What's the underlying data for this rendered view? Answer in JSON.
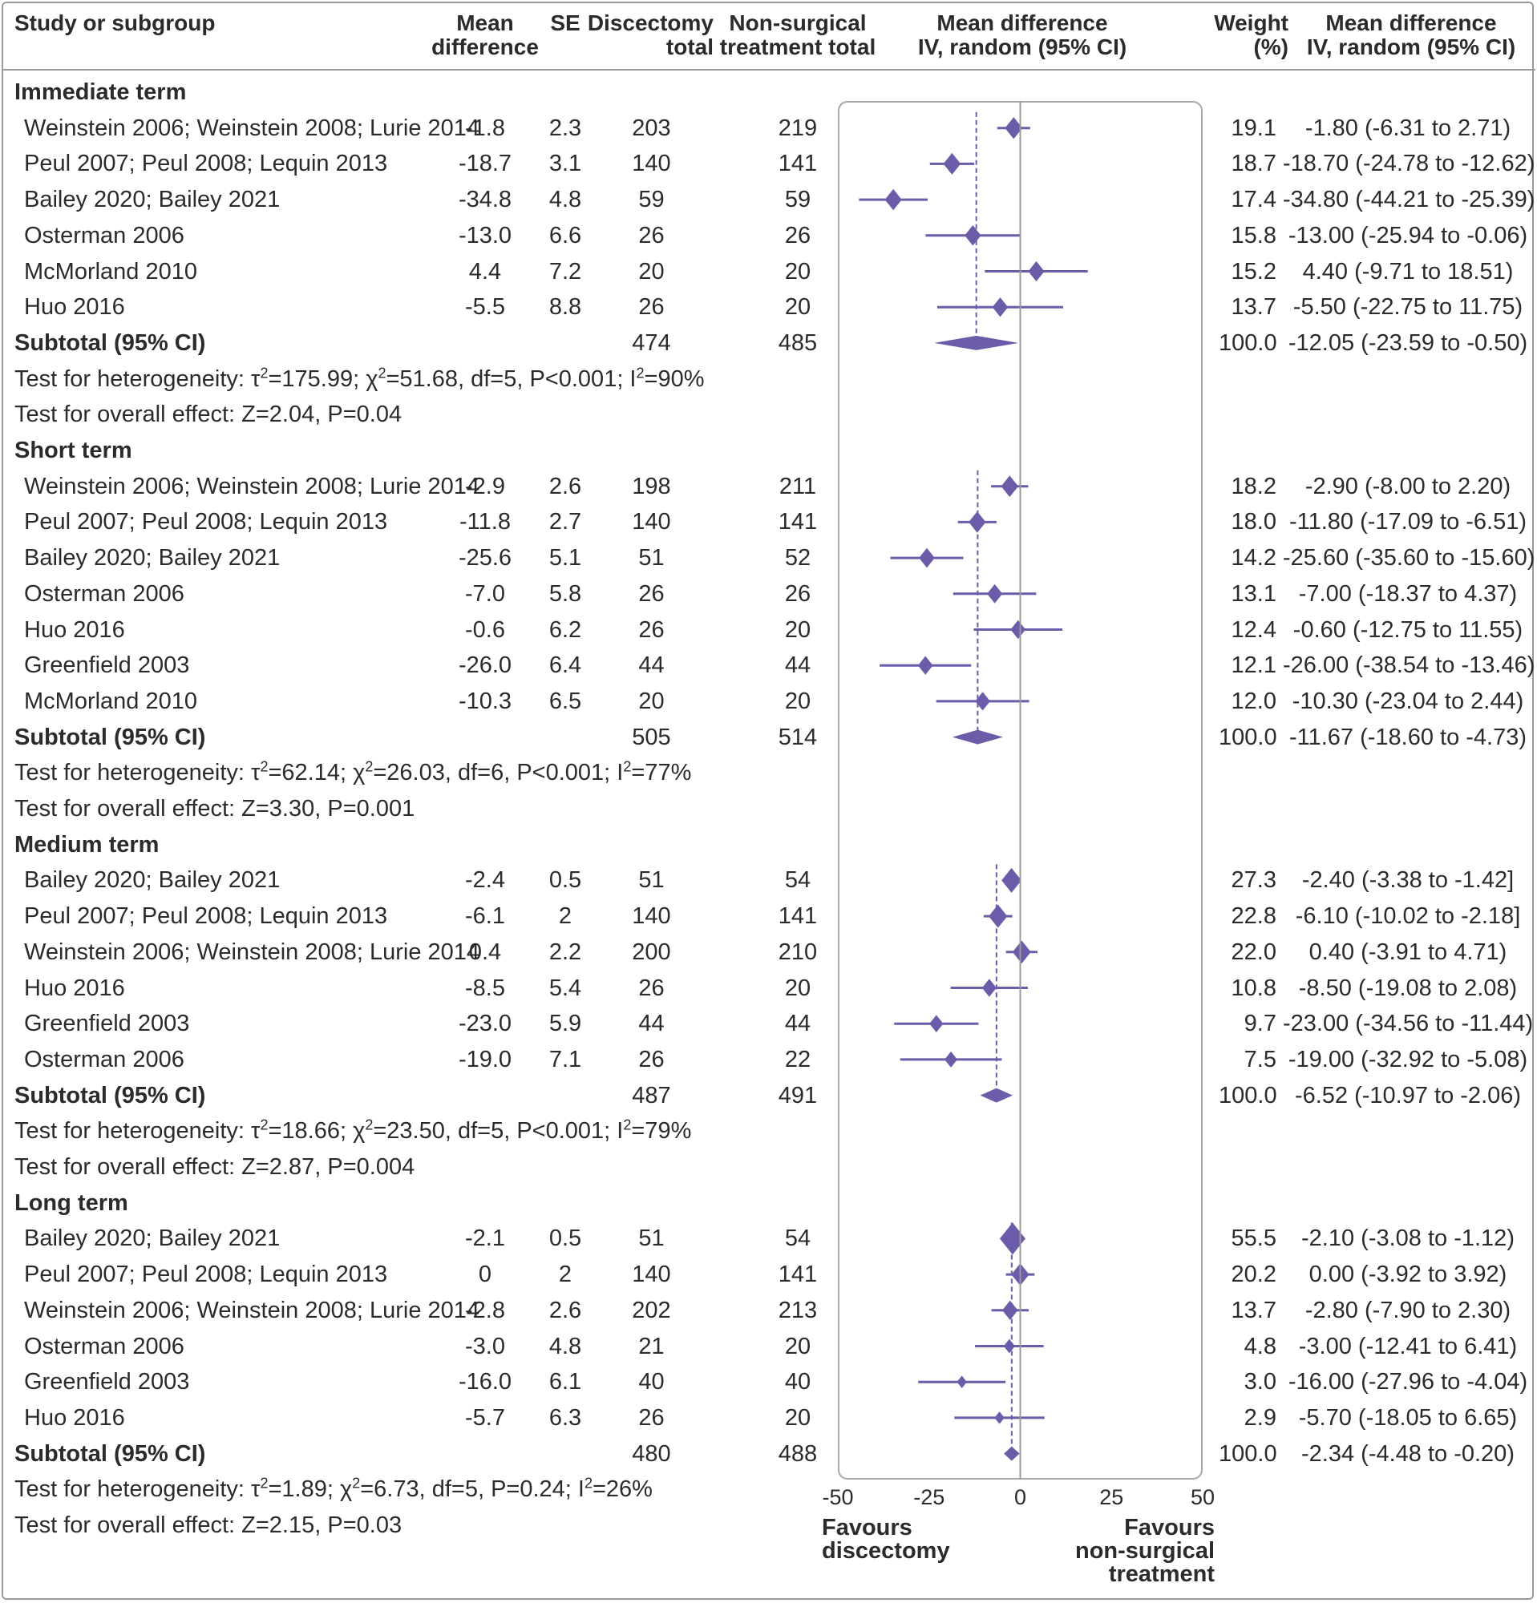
{
  "chart_data": {
    "type": "forest",
    "headers": {
      "study": "Study or subgroup",
      "md": [
        "Mean",
        "difference"
      ],
      "se": "SE",
      "disc": [
        "Discectomy",
        "total"
      ],
      "nonsurg": [
        "Non-surgical",
        "treatment total"
      ],
      "plot": [
        "Mean difference",
        "IV, random (95% CI)"
      ],
      "weight": [
        "Weight",
        "(%)"
      ],
      "ci": [
        "Mean difference",
        "IV, random (95% CI)"
      ]
    },
    "xlim": [
      -50,
      50
    ],
    "xticks": [
      "-50",
      "-25",
      "0",
      "25",
      "50"
    ],
    "favours_left": [
      "Favours",
      "discectomy"
    ],
    "favours_right": [
      "Favours",
      "non-surgical",
      "treatment"
    ],
    "colors": {
      "marker": "#6b5ba8",
      "axis": "#a8a8a8",
      "text": "#2b2b2b"
    },
    "groups": [
      {
        "name": "Immediate term",
        "studies": [
          {
            "study": "Weinstein 2006; Weinstein 2008; Lurie 2014",
            "md": "-1.8",
            "se": "2.3",
            "disc": "203",
            "non": "219",
            "weight": "19.1",
            "ci": "-1.80 (-6.31 to 2.71)",
            "est": -1.8,
            "lo": -6.31,
            "hi": 2.71
          },
          {
            "study": "Peul 2007; Peul 2008; Lequin 2013",
            "md": "-18.7",
            "se": "3.1",
            "disc": "140",
            "non": "141",
            "weight": "18.7",
            "ci": "-18.70 (-24.78 to -12.62)",
            "est": -18.7,
            "lo": -24.78,
            "hi": -12.62
          },
          {
            "study": "Bailey 2020; Bailey 2021",
            "md": "-34.8",
            "se": "4.8",
            "disc": "59",
            "non": "59",
            "weight": "17.4",
            "ci": "-34.80 (-44.21 to -25.39)",
            "est": -34.8,
            "lo": -44.21,
            "hi": -25.39
          },
          {
            "study": "Osterman 2006",
            "md": "-13.0",
            "se": "6.6",
            "disc": "26",
            "non": "26",
            "weight": "15.8",
            "ci": "-13.00 (-25.94 to -0.06)",
            "est": -13.0,
            "lo": -25.94,
            "hi": -0.06
          },
          {
            "study": "McMorland 2010",
            "md": "4.4",
            "se": "7.2",
            "disc": "20",
            "non": "20",
            "weight": "15.2",
            "ci": "4.40 (-9.71 to 18.51)",
            "est": 4.4,
            "lo": -9.71,
            "hi": 18.51
          },
          {
            "study": "Huo 2016",
            "md": "-5.5",
            "se": "8.8",
            "disc": "26",
            "non": "20",
            "weight": "13.7",
            "ci": "-5.50 (-22.75 to 11.75)",
            "est": -5.5,
            "lo": -22.75,
            "hi": 11.75
          }
        ],
        "subtotal": {
          "label": "Subtotal (95% CI)",
          "disc": "474",
          "non": "485",
          "weight": "100.0",
          "ci": "-12.05 (-23.59 to -0.50)",
          "est": -12.05,
          "lo": -23.59,
          "hi": -0.5
        },
        "het": {
          "prefix": "Test for heterogeneity: τ",
          "mid": "=175.99; χ",
          "rest": "=51.68, df=5, P<0.001; I",
          "end": "=90%"
        },
        "overall": "Test for overall effect: Z=2.04, P=0.04"
      },
      {
        "name": "Short term",
        "studies": [
          {
            "study": "Weinstein 2006; Weinstein 2008; Lurie 2014",
            "md": "-2.9",
            "se": "2.6",
            "disc": "198",
            "non": "211",
            "weight": "18.2",
            "ci": "-2.90 (-8.00 to 2.20)",
            "est": -2.9,
            "lo": -8.0,
            "hi": 2.2
          },
          {
            "study": "Peul 2007; Peul 2008; Lequin 2013",
            "md": "-11.8",
            "se": "2.7",
            "disc": "140",
            "non": "141",
            "weight": "18.0",
            "ci": "-11.80 (-17.09 to -6.51)",
            "est": -11.8,
            "lo": -17.09,
            "hi": -6.51
          },
          {
            "study": "Bailey 2020; Bailey 2021",
            "md": "-25.6",
            "se": "5.1",
            "disc": "51",
            "non": "52",
            "weight": "14.2",
            "ci": "-25.60 (-35.60 to -15.60)",
            "est": -25.6,
            "lo": -35.6,
            "hi": -15.6
          },
          {
            "study": "Osterman 2006",
            "md": "-7.0",
            "se": "5.8",
            "disc": "26",
            "non": "26",
            "weight": "13.1",
            "ci": "-7.00 (-18.37 to 4.37)",
            "est": -7.0,
            "lo": -18.37,
            "hi": 4.37
          },
          {
            "study": "Huo 2016",
            "md": "-0.6",
            "se": "6.2",
            "disc": "26",
            "non": "20",
            "weight": "12.4",
            "ci": "-0.60 (-12.75 to 11.55)",
            "est": -0.6,
            "lo": -12.75,
            "hi": 11.55
          },
          {
            "study": "Greenfield 2003",
            "md": "-26.0",
            "se": "6.4",
            "disc": "44",
            "non": "44",
            "weight": "12.1",
            "ci": "-26.00 (-38.54 to -13.46)",
            "est": -26.0,
            "lo": -38.54,
            "hi": -13.46
          },
          {
            "study": "McMorland 2010",
            "md": "-10.3",
            "se": "6.5",
            "disc": "20",
            "non": "20",
            "weight": "12.0",
            "ci": "-10.30 (-23.04 to 2.44)",
            "est": -10.3,
            "lo": -23.04,
            "hi": 2.44
          }
        ],
        "subtotal": {
          "label": "Subtotal (95% CI)",
          "disc": "505",
          "non": "514",
          "weight": "100.0",
          "ci": "-11.67 (-18.60 to -4.73)",
          "est": -11.67,
          "lo": -18.6,
          "hi": -4.73
        },
        "het": {
          "prefix": "Test for heterogeneity: τ",
          "mid": "=62.14; χ",
          "rest": "=26.03, df=6, P<0.001; I",
          "end": "=77%"
        },
        "overall": "Test for overall effect: Z=3.30, P=0.001"
      },
      {
        "name": "Medium term",
        "studies": [
          {
            "study": "Bailey 2020; Bailey 2021",
            "md": "-2.4",
            "se": "0.5",
            "disc": "51",
            "non": "54",
            "weight": "27.3",
            "ci": "-2.40 (-3.38 to -1.42]",
            "est": -2.4,
            "lo": -3.38,
            "hi": -1.42
          },
          {
            "study": "Peul 2007; Peul 2008; Lequin 2013",
            "md": "-6.1",
            "se": "2",
            "disc": "140",
            "non": "141",
            "weight": "22.8",
            "ci": "-6.10 (-10.02 to -2.18]",
            "est": -6.1,
            "lo": -10.02,
            "hi": -2.18
          },
          {
            "study": "Weinstein 2006; Weinstein 2008; Lurie 2014",
            "md": "0.4",
            "se": "2.2",
            "disc": "200",
            "non": "210",
            "weight": "22.0",
            "ci": "0.40 (-3.91 to 4.71)",
            "est": 0.4,
            "lo": -3.91,
            "hi": 4.71
          },
          {
            "study": "Huo 2016",
            "md": "-8.5",
            "se": "5.4",
            "disc": "26",
            "non": "20",
            "weight": "10.8",
            "ci": "-8.50 (-19.08 to 2.08)",
            "est": -8.5,
            "lo": -19.08,
            "hi": 2.08
          },
          {
            "study": "Greenfield 2003",
            "md": "-23.0",
            "se": "5.9",
            "disc": "44",
            "non": "44",
            "weight": "9.7",
            "ci": "-23.00 (-34.56 to -11.44)",
            "est": -23.0,
            "lo": -34.56,
            "hi": -11.44
          },
          {
            "study": "Osterman 2006",
            "md": "-19.0",
            "se": "7.1",
            "disc": "26",
            "non": "22",
            "weight": "7.5",
            "ci": "-19.00 (-32.92 to -5.08)",
            "est": -19.0,
            "lo": -32.92,
            "hi": -5.08
          }
        ],
        "subtotal": {
          "label": "Subtotal (95% CI)",
          "disc": "487",
          "non": "491",
          "weight": "100.0",
          "ci": "-6.52 (-10.97 to -2.06)",
          "est": -6.52,
          "lo": -10.97,
          "hi": -2.06
        },
        "het": {
          "prefix": "Test for heterogeneity: τ",
          "mid": "=18.66; χ",
          "rest": "=23.50, df=5, P<0.001; I",
          "end": "=79%"
        },
        "overall": "Test for overall effect: Z=2.87, P=0.004"
      },
      {
        "name": "Long term",
        "studies": [
          {
            "study": "Bailey 2020; Bailey 2021",
            "md": "-2.1",
            "se": "0.5",
            "disc": "51",
            "non": "54",
            "weight": "55.5",
            "ci": "-2.10 (-3.08 to -1.12)",
            "est": -2.1,
            "lo": -3.08,
            "hi": -1.12
          },
          {
            "study": "Peul 2007; Peul 2008; Lequin 2013",
            "md": "0",
            "se": "2",
            "disc": "140",
            "non": "141",
            "weight": "20.2",
            "ci": "0.00 (-3.92 to 3.92)",
            "est": 0.0,
            "lo": -3.92,
            "hi": 3.92
          },
          {
            "study": "Weinstein 2006; Weinstein 2008; Lurie 2014",
            "md": "-2.8",
            "se": "2.6",
            "disc": "202",
            "non": "213",
            "weight": "13.7",
            "ci": "-2.80 (-7.90 to 2.30)",
            "est": -2.8,
            "lo": -7.9,
            "hi": 2.3
          },
          {
            "study": "Osterman 2006",
            "md": "-3.0",
            "se": "4.8",
            "disc": "21",
            "non": "20",
            "weight": "4.8",
            "ci": "-3.00 (-12.41 to 6.41)",
            "est": -3.0,
            "lo": -12.41,
            "hi": 6.41
          },
          {
            "study": "Greenfield 2003",
            "md": "-16.0",
            "se": "6.1",
            "disc": "40",
            "non": "40",
            "weight": "3.0",
            "ci": "-16.00 (-27.96 to -4.04)",
            "est": -16.0,
            "lo": -27.96,
            "hi": -4.04
          },
          {
            "study": "Huo 2016",
            "md": "-5.7",
            "se": "6.3",
            "disc": "26",
            "non": "20",
            "weight": "2.9",
            "ci": "-5.70 (-18.05 to 6.65)",
            "est": -5.7,
            "lo": -18.05,
            "hi": 6.65
          }
        ],
        "subtotal": {
          "label": "Subtotal (95% CI)",
          "disc": "480",
          "non": "488",
          "weight": "100.0",
          "ci": "-2.34 (-4.48 to -0.20)",
          "est": -2.34,
          "lo": -4.48,
          "hi": -0.2
        },
        "het": {
          "prefix": "Test for heterogeneity: τ",
          "mid": "=1.89; χ",
          "rest": "=6.73, df=5, P=0.24; I",
          "end": "=26%"
        },
        "overall": "Test for overall effect: Z=2.15, P=0.03"
      }
    ]
  }
}
